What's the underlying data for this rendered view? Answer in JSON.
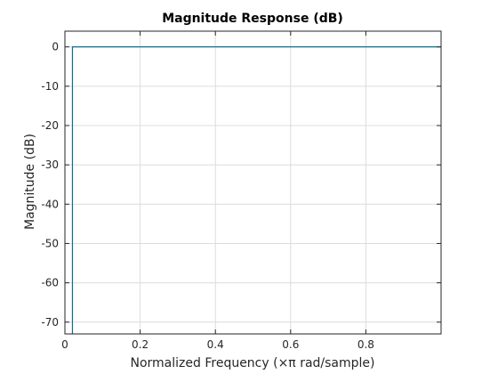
{
  "chart_data": {
    "type": "line",
    "title": "Magnitude Response (dB)",
    "xlabel": "Normalized Frequency (×π rad/sample)",
    "ylabel": "Magnitude (dB)",
    "xlim": [
      0,
      1
    ],
    "ylim": [
      -73,
      4
    ],
    "x_ticks": [
      0,
      0.2,
      0.4,
      0.6,
      0.8
    ],
    "x_tick_labels": [
      "0",
      "0.2",
      "0.4",
      "0.6",
      "0.8"
    ],
    "y_ticks": [
      0,
      -10,
      -20,
      -30,
      -40,
      -50,
      -60,
      -70
    ],
    "y_tick_labels": [
      "0",
      "-10",
      "-20",
      "-30",
      "-40",
      "-50",
      "-60",
      "-70"
    ],
    "grid": true,
    "series": [
      {
        "color": "#0b6f8f",
        "x": [
          0.02,
          0.02,
          1
        ],
        "y": [
          -73,
          0,
          0
        ]
      }
    ]
  }
}
